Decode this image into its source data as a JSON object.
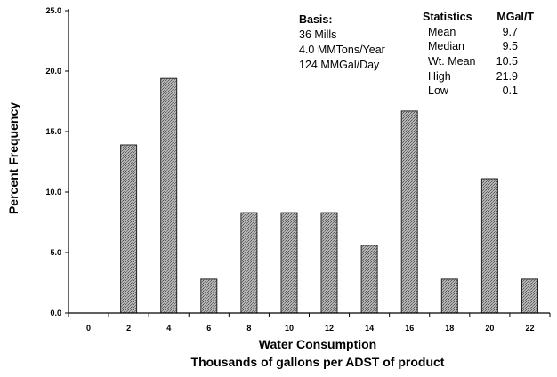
{
  "chart_data": {
    "type": "bar",
    "categories": [
      "0",
      "2",
      "4",
      "6",
      "8",
      "10",
      "12",
      "14",
      "16",
      "18",
      "20",
      "22"
    ],
    "values": [
      0,
      13.9,
      19.4,
      2.8,
      8.3,
      8.3,
      8.3,
      5.6,
      16.7,
      2.8,
      11.1,
      2.8
    ],
    "ylim": [
      0,
      25
    ],
    "yticks": [
      "0.0",
      "5.0",
      "10.0",
      "15.0",
      "20.0",
      "25.0"
    ],
    "ytick_values": [
      0,
      5,
      10,
      15,
      20,
      25
    ],
    "ylabel": "Percent Frequency",
    "xlabel_line1": "Water Consumption",
    "xlabel_line2": "Thousands of gallons per ADST of product",
    "grid": false,
    "bar_color": "#9a9a9a"
  },
  "basis": {
    "title": "Basis:",
    "lines": [
      "36 Mills",
      "4.0 MMTons/Year",
      "124 MMGal/Day"
    ]
  },
  "statistics": {
    "header_label": "Statistics",
    "header_unit": "MGal/T",
    "rows": [
      {
        "label": "Mean",
        "value": "9.7"
      },
      {
        "label": "Median",
        "value": "9.5"
      },
      {
        "label": "Wt. Mean",
        "value": "10.5"
      },
      {
        "label": "High",
        "value": "21.9"
      },
      {
        "label": "Low",
        "value": "0.1"
      }
    ]
  }
}
